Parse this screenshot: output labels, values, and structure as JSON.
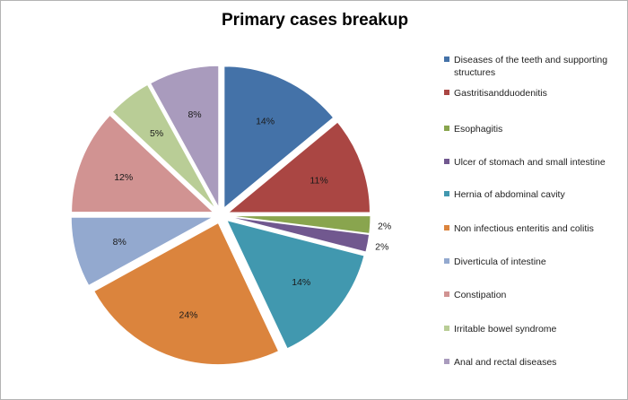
{
  "chart_data": {
    "type": "pie",
    "title": "Primary cases breakup",
    "legend_position": "right",
    "slices": [
      {
        "label": "Diseases of the teeth and supporting structures",
        "value": 14,
        "value_label": "14%",
        "color": "#4472a8"
      },
      {
        "label": "Gastritisandduodenitis",
        "value": 11,
        "value_label": "11%",
        "color": "#aa4643"
      },
      {
        "label": "Esophagitis",
        "value": 2,
        "value_label": "2%",
        "color": "#89a54e"
      },
      {
        "label": "Ulcer of stomach and small  intestine",
        "value": 2,
        "value_label": "2%",
        "color": "#71588f"
      },
      {
        "label": "Hernia of abdominal  cavity",
        "value": 14,
        "value_label": "14%",
        "color": "#4198af"
      },
      {
        "label": "Non infectious enteritis and colitis",
        "value": 24,
        "value_label": "24%",
        "color": "#db843d"
      },
      {
        "label": "Diverticula of intestine",
        "value": 8,
        "value_label": "8%",
        "color": "#93a9cf"
      },
      {
        "label": "Constipation",
        "value": 12,
        "value_label": "12%",
        "color": "#d19392"
      },
      {
        "label": "Irritable bowel syndrome",
        "value": 5,
        "value_label": "5%",
        "color": "#b9cd96"
      },
      {
        "label": "Anal and rectal diseases",
        "value": 8,
        "value_label": "8%",
        "color": "#a99bbd"
      }
    ]
  }
}
